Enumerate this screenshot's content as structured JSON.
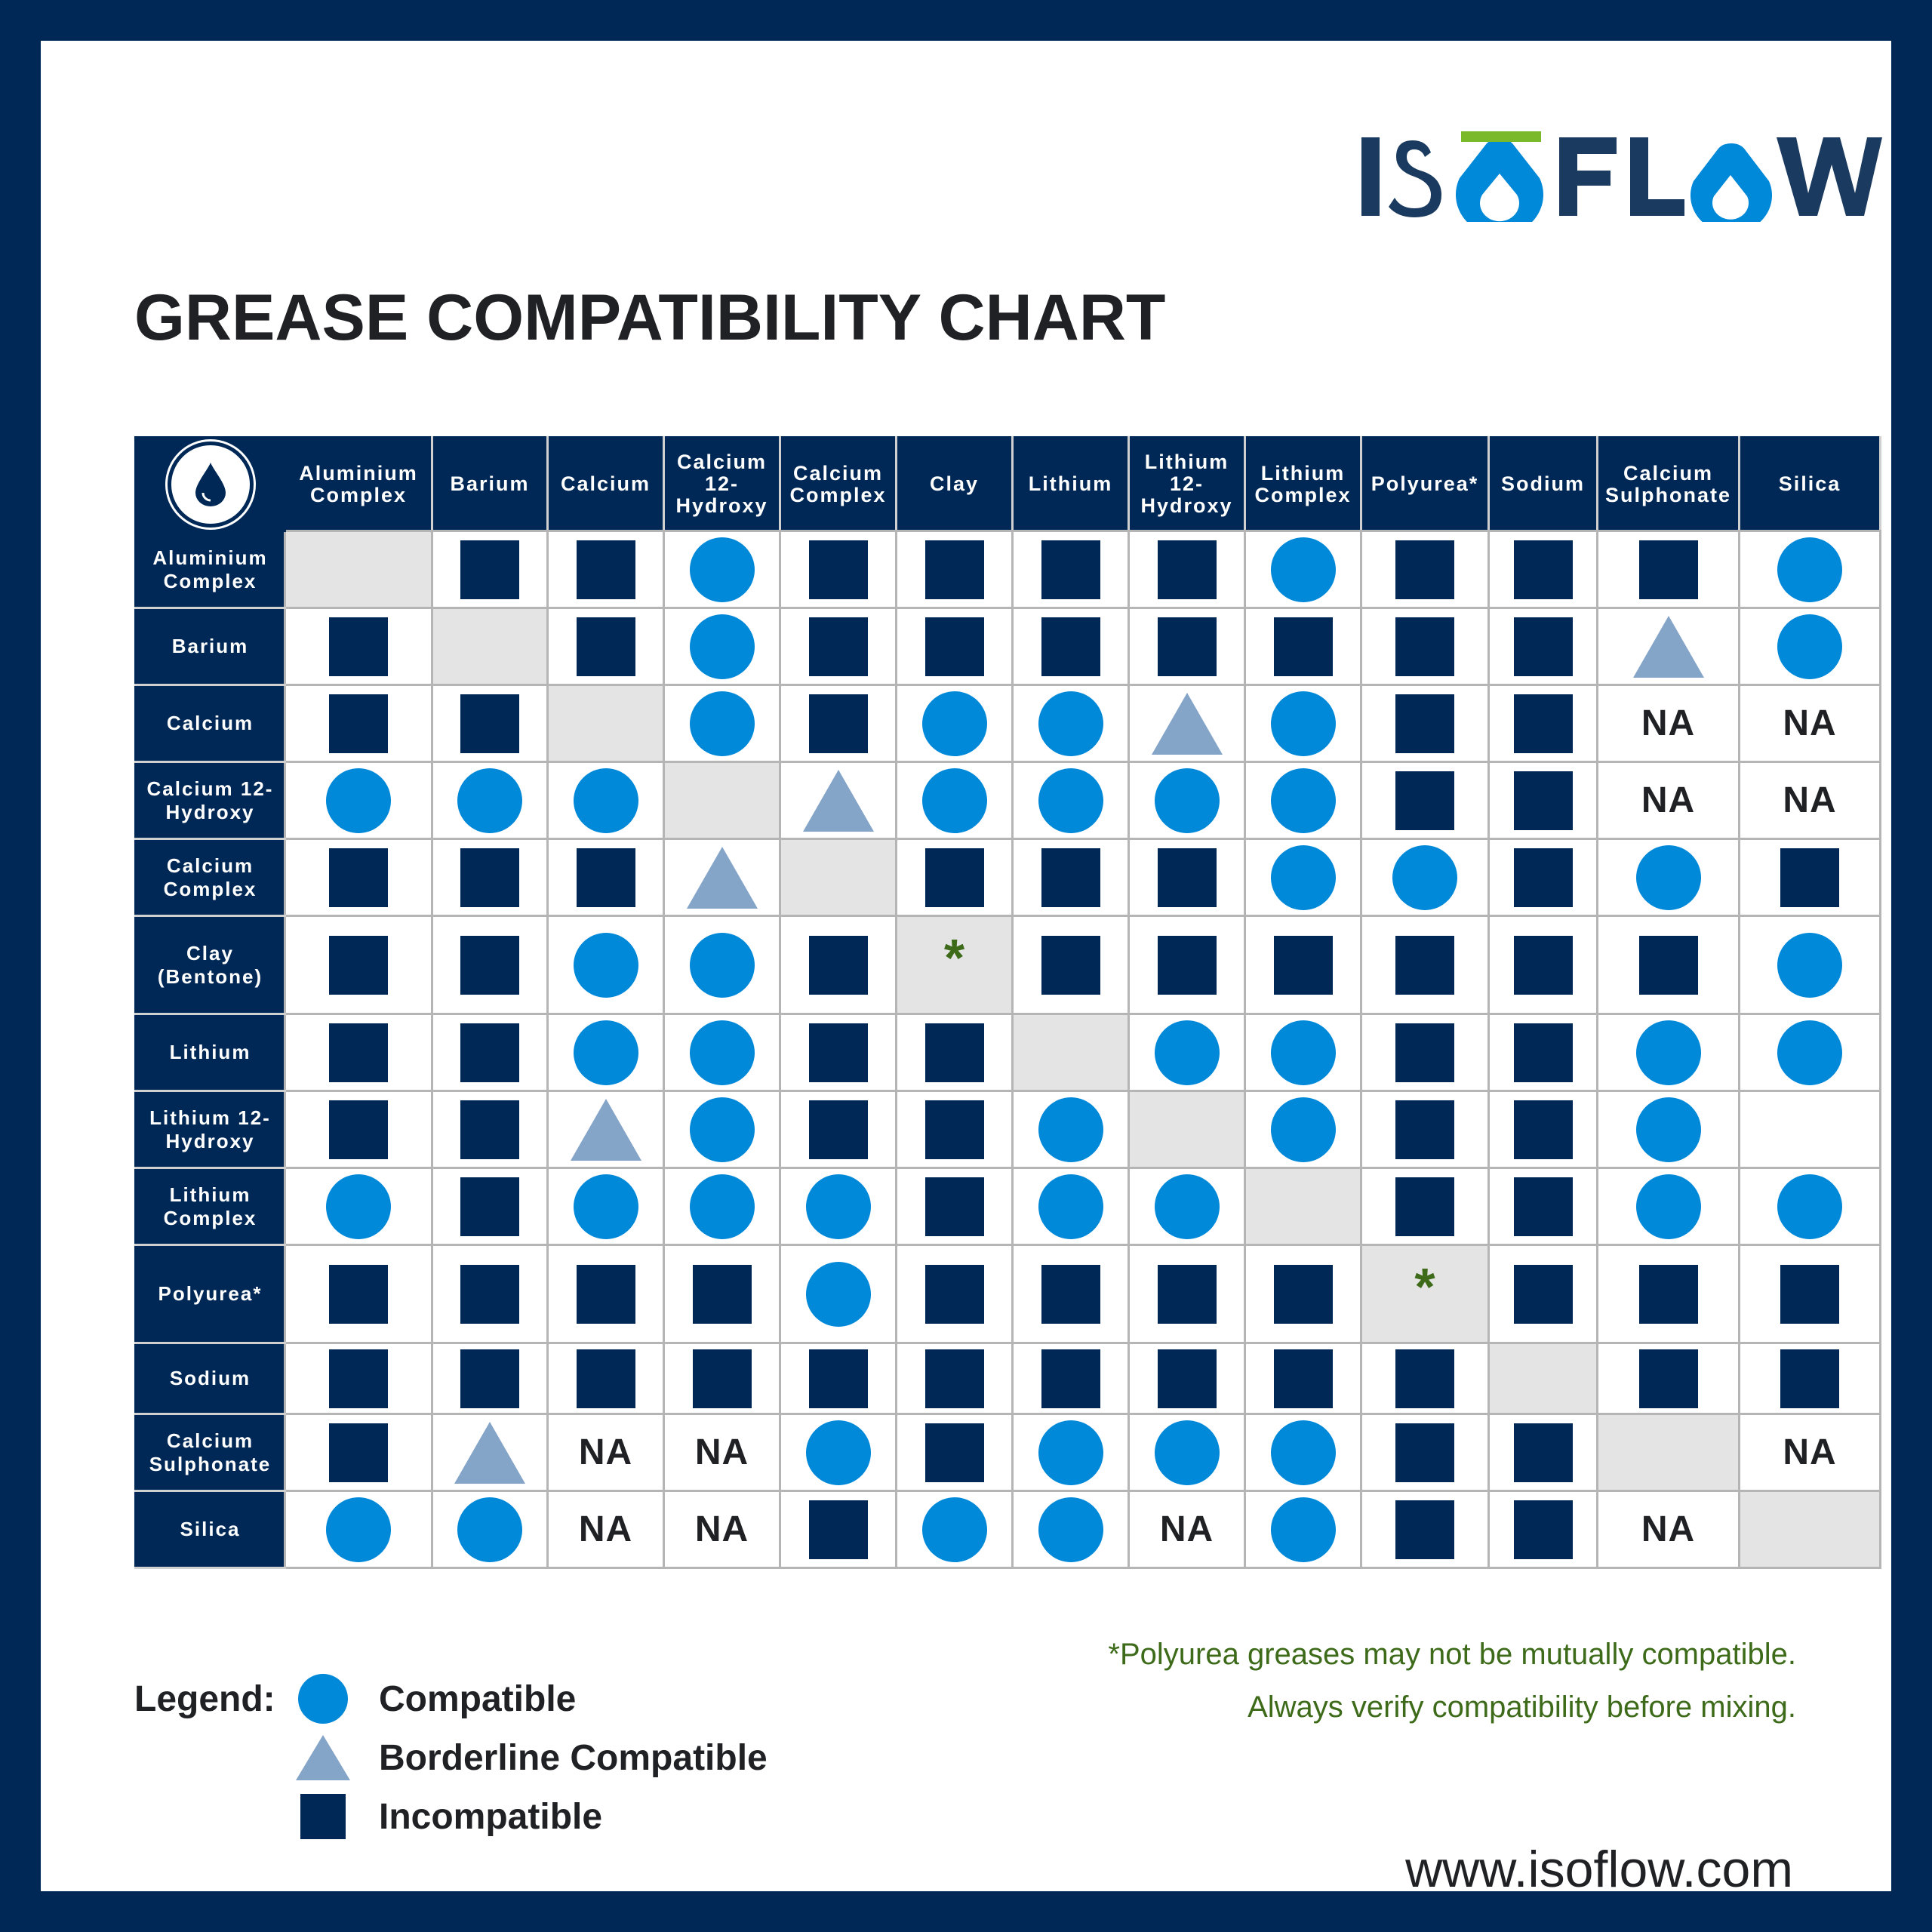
{
  "logo": {
    "text": "ISOFLOW",
    "dark_color": "#1b3a5f",
    "accent_color": "#0088d9",
    "bar_color": "#7ab929"
  },
  "title": "GREASE COMPATIBILITY CHART",
  "chart_data": {
    "type": "table",
    "columns": [
      "Aluminium Complex",
      "Barium",
      "Calcium",
      "Calcium 12-Hydroxy",
      "Calcium Complex",
      "Clay",
      "Lithium",
      "Lithium 12-Hydroxy",
      "Lithium Complex",
      "Polyurea*",
      "Sodium",
      "Calcium Sulphonate",
      "Silica"
    ],
    "rows": [
      {
        "label": "Aluminium Complex",
        "cells": [
          "diag",
          "I",
          "I",
          "C",
          "I",
          "I",
          "I",
          "I",
          "C",
          "I",
          "I",
          "I",
          "C"
        ]
      },
      {
        "label": "Barium",
        "cells": [
          "I",
          "diag",
          "I",
          "C",
          "I",
          "I",
          "I",
          "I",
          "I",
          "I",
          "I",
          "B",
          "C"
        ]
      },
      {
        "label": "Calcium",
        "cells": [
          "I",
          "I",
          "diag",
          "C",
          "I",
          "C",
          "C",
          "B",
          "C",
          "I",
          "I",
          "NA",
          "NA"
        ]
      },
      {
        "label": "Calcium 12-Hydroxy",
        "cells": [
          "C",
          "C",
          "C",
          "diag",
          "B",
          "C",
          "C",
          "C",
          "C",
          "I",
          "I",
          "NA",
          "NA"
        ]
      },
      {
        "label": "Calcium Complex",
        "cells": [
          "I",
          "I",
          "I",
          "B",
          "diag",
          "I",
          "I",
          "I",
          "C",
          "C",
          "I",
          "C",
          "I"
        ]
      },
      {
        "label": "Clay (Bentone)",
        "cells": [
          "I",
          "I",
          "C",
          "C",
          "I",
          "diag*",
          "I",
          "I",
          "I",
          "I",
          "I",
          "I",
          "C"
        ]
      },
      {
        "label": "Lithium",
        "cells": [
          "I",
          "I",
          "C",
          "C",
          "I",
          "I",
          "diag",
          "C",
          "C",
          "I",
          "I",
          "C",
          "C"
        ]
      },
      {
        "label": "Lithium 12-Hydroxy",
        "cells": [
          "I",
          "I",
          "B",
          "C",
          "I",
          "I",
          "C",
          "diag",
          "C",
          "I",
          "I",
          "C",
          ""
        ]
      },
      {
        "label": "Lithium Complex",
        "cells": [
          "C",
          "I",
          "C",
          "C",
          "C",
          "I",
          "C",
          "C",
          "diag",
          "I",
          "I",
          "C",
          "C"
        ]
      },
      {
        "label": "Polyurea*",
        "cells": [
          "I",
          "I",
          "I",
          "I",
          "C",
          "I",
          "I",
          "I",
          "I",
          "diag*",
          "I",
          "I",
          "I"
        ]
      },
      {
        "label": "Sodium",
        "cells": [
          "I",
          "I",
          "I",
          "I",
          "I",
          "I",
          "I",
          "I",
          "I",
          "I",
          "diag",
          "I",
          "I"
        ]
      },
      {
        "label": "Calcium Sulphonate",
        "cells": [
          "I",
          "B",
          "NA",
          "NA",
          "C",
          "I",
          "C",
          "C",
          "C",
          "I",
          "I",
          "diag",
          "NA"
        ]
      },
      {
        "label": "Silica",
        "cells": [
          "C",
          "C",
          "NA",
          "NA",
          "I",
          "C",
          "C",
          "NA",
          "C",
          "I",
          "I",
          "NA",
          "diag"
        ]
      }
    ],
    "symbol_key": {
      "C": "Compatible",
      "B": "Borderline Compatible",
      "I": "Incompatible"
    },
    "na_text": "NA",
    "star_text": "*",
    "colors": {
      "compatible": "#0088d9",
      "borderline": "#84a4c8",
      "incompatible": "#002856",
      "diagonal": "#e4e4e4"
    }
  },
  "legend": {
    "title": "Legend:",
    "items": [
      {
        "symbol": "circle",
        "label": "Compatible"
      },
      {
        "symbol": "triangle",
        "label": "Borderline Compatible"
      },
      {
        "symbol": "square",
        "label": "Incompatible"
      }
    ]
  },
  "note": {
    "line1": "*Polyurea greases may not be mutually compatible.",
    "line2": "Always verify compatibility before mixing."
  },
  "website": "www.isoflow.com",
  "icons": {
    "corner": "oil-drop-icon"
  }
}
